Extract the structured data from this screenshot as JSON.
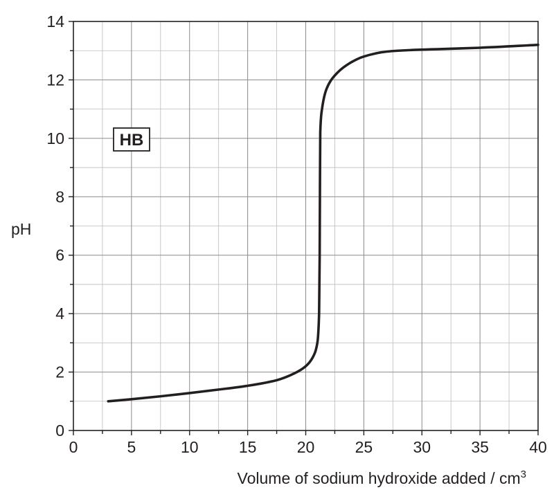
{
  "chart_data": {
    "type": "line",
    "xlabel": "Volume of sodium hydroxide added / cm",
    "xlabel_superscript": "3",
    "ylabel": "pH",
    "xlim": [
      0,
      40
    ],
    "ylim": [
      0,
      14
    ],
    "x_ticks": [
      "0",
      "5",
      "10",
      "15",
      "20",
      "25",
      "30",
      "35",
      "40"
    ],
    "y_ticks": [
      "0",
      "2",
      "4",
      "6",
      "8",
      "10",
      "12",
      "14"
    ],
    "grid": true,
    "annotation": "HB",
    "series": [
      {
        "color": "#231f20",
        "points": [
          [
            3,
            1.0
          ],
          [
            5,
            1.07
          ],
          [
            7.5,
            1.17
          ],
          [
            10,
            1.28
          ],
          [
            12.5,
            1.4
          ],
          [
            15,
            1.53
          ],
          [
            17.5,
            1.72
          ],
          [
            19,
            1.95
          ],
          [
            20,
            2.2
          ],
          [
            20.6,
            2.5
          ],
          [
            21.0,
            3.0
          ],
          [
            21.15,
            4.0
          ],
          [
            21.2,
            6.0
          ],
          [
            21.22,
            8.0
          ],
          [
            21.25,
            10.2
          ],
          [
            21.4,
            11.0
          ],
          [
            21.8,
            11.7
          ],
          [
            22.5,
            12.15
          ],
          [
            23.5,
            12.5
          ],
          [
            25,
            12.8
          ],
          [
            27,
            12.97
          ],
          [
            29,
            13.02
          ],
          [
            32,
            13.06
          ],
          [
            35,
            13.1
          ],
          [
            40,
            13.2
          ]
        ]
      }
    ]
  }
}
